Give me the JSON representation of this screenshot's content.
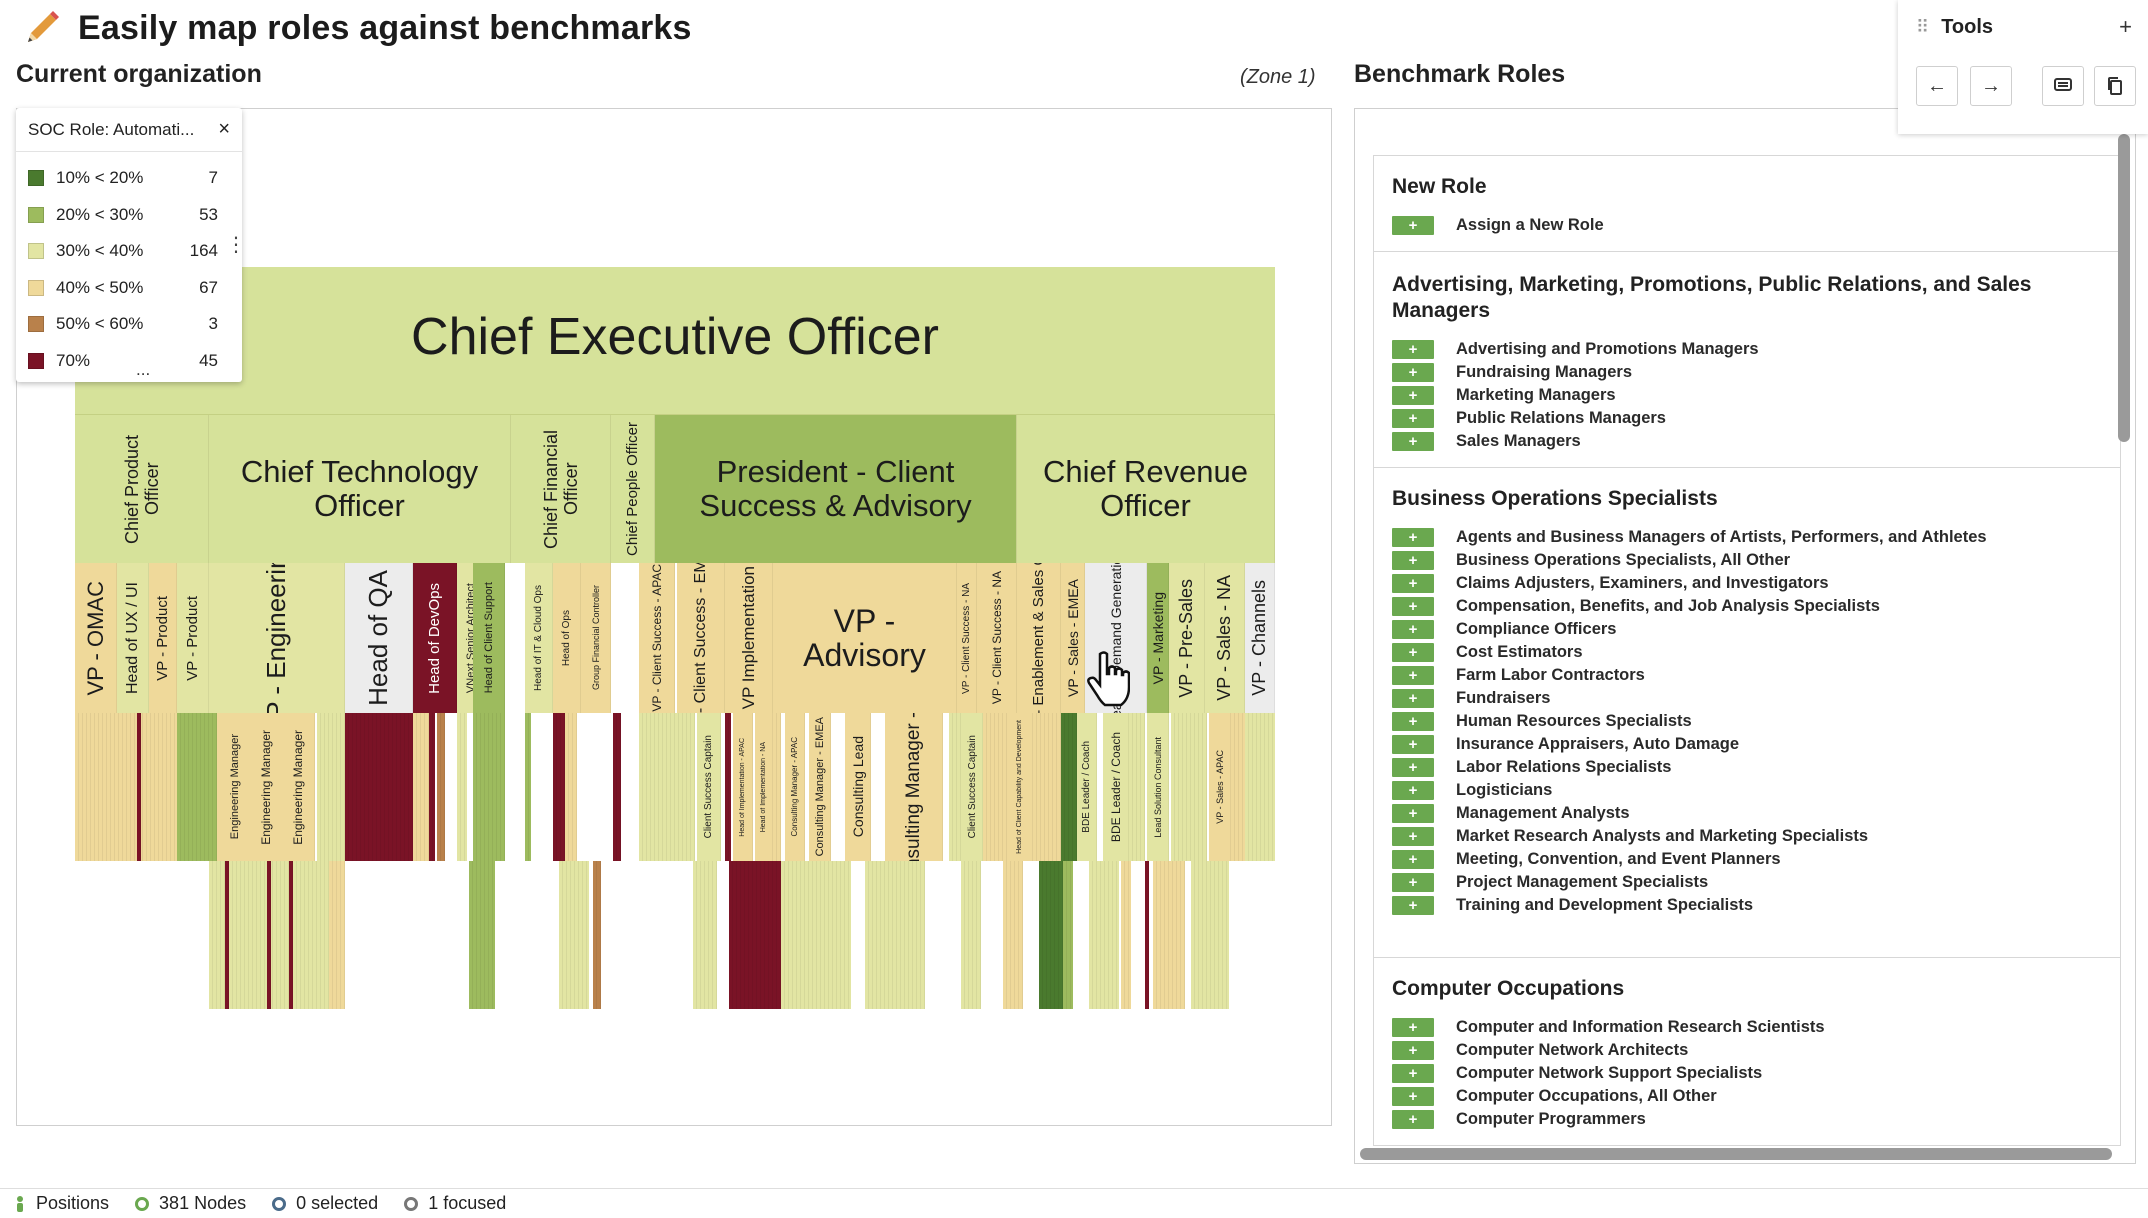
{
  "header": {
    "title": "Easily map roles against benchmarks",
    "icon": "pencil-icon"
  },
  "left_panel": {
    "title": "Current organization",
    "zone": "(Zone 1)"
  },
  "legend": {
    "title": "SOC Role: Automati...",
    "close": "×",
    "more": "...",
    "kebab": "⋮",
    "rows": [
      {
        "range": "10% < 20%",
        "count": "7",
        "color": "#4a7a2e"
      },
      {
        "range": "20% < 30%",
        "count": "53",
        "color": "#9dbb5e"
      },
      {
        "range": "30% < 40%",
        "count": "164",
        "color": "#e2e5a3"
      },
      {
        "range": "40% < 50%",
        "count": "67",
        "color": "#efd99a"
      },
      {
        "range": "50% < 60%",
        "count": "3",
        "color": "#b9814b"
      },
      {
        "range": "70%",
        "count": "45",
        "color": "#7a1326"
      }
    ]
  },
  "org_chart": {
    "ceo": "Chief Executive Officer",
    "level2": [
      {
        "label": "Chief Product Officer"
      },
      {
        "label": "Chief Technology Officer"
      },
      {
        "label": "Chief Financial Officer"
      },
      {
        "label": "Chief People Officer"
      },
      {
        "label": "President -  Client Success & Advisory"
      },
      {
        "label": "Chief Revenue Officer"
      }
    ],
    "level3": [
      "VP - OMAC",
      "Head of UX / UI",
      "VP - Product",
      "VP - Product",
      "VP - Engineering",
      "Head of QA",
      "Head of DevOps",
      "VNext Senior Architect",
      "Head of Client Support",
      "Head of IT & Cloud Ops",
      "Head of Ops",
      "Group Financial Controller",
      "VP - Client Success - APAC",
      "VP - Client Success - EMEA",
      "VP Implementation",
      "VP - Advisory",
      "VP - Client Success - NA",
      "VP - Client Success - NA",
      "VP - Enablement & Sales Ops",
      "VP - Sales - EMEA",
      "Head of Demand Generation",
      "VP - Marketing",
      "VP - Pre-Sales",
      "VP - Sales - NA",
      "VP - Channels"
    ],
    "level4": [
      "Engineering Manager",
      "Engineering Manager",
      "Engineering Manager",
      "Client Success Captain",
      "Head of Implementation - APAC",
      "Head of Implementation - NA",
      "Consulting Manager - APAC",
      "Consulting Manager - EMEA",
      "Consulting Lead",
      "Consulting Manager - NA",
      "Client Success Captain",
      "Head of Client Capability and Development",
      "BDE Leader / Coach",
      "BDE Leader / Coach",
      "Lead Solution Consultant",
      "VP - Sales - APAC"
    ]
  },
  "zoom": {
    "fit": "⛶",
    "minus": "−",
    "plus": "+"
  },
  "right_panel": {
    "title": "Benchmark Roles",
    "add_symbol": "+",
    "groups": [
      {
        "title": "New Role",
        "roles": [
          "Assign a New Role"
        ]
      },
      {
        "title": "Advertising, Marketing, Promotions, Public Relations, and Sales Managers",
        "roles": [
          "Advertising and Promotions Managers",
          "Fundraising Managers",
          "Marketing Managers",
          "Public Relations Managers",
          "Sales Managers"
        ]
      },
      {
        "title": "Business Operations Specialists",
        "roles": [
          "Agents and Business Managers of Artists, Performers, and Athletes",
          "Business Operations Specialists, All Other",
          "Claims Adjusters, Examiners, and Investigators",
          "Compensation, Benefits, and Job Analysis Specialists",
          "Compliance Officers",
          "Cost Estimators",
          "Farm Labor Contractors",
          "Fundraisers",
          "Human Resources Specialists",
          "Insurance Appraisers, Auto Damage",
          "Labor Relations Specialists",
          "Logisticians",
          "Management Analysts",
          "Market Research Analysts and Marketing Specialists",
          "Meeting, Convention, and Event Planners",
          "Project Management Specialists",
          "Training and Development Specialists"
        ]
      },
      {
        "title": "Computer Occupations",
        "roles": [
          "Computer and Information Research Scientists",
          "Computer Network Architects",
          "Computer Network Support Specialists",
          "Computer Occupations, All Other",
          "Computer Programmers"
        ]
      }
    ]
  },
  "tools": {
    "title": "Tools",
    "add": "+",
    "grip": "⠿",
    "back": "←",
    "forward": "→"
  },
  "statusbar": {
    "positions": "Positions",
    "nodes": "381 Nodes",
    "selected": "0 selected",
    "focused": "1 focused"
  }
}
